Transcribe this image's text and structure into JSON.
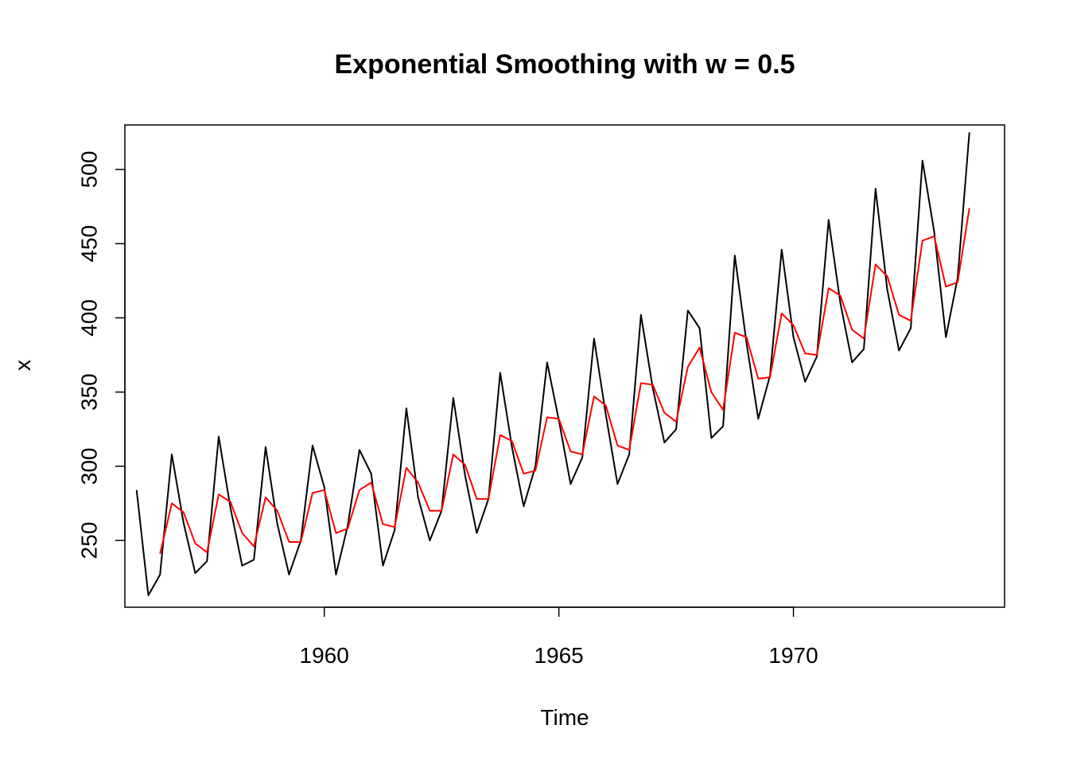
{
  "chart_data": {
    "type": "line",
    "title": "Exponential Smoothing with w = 0.5",
    "xlabel": "Time",
    "ylabel": "x",
    "xlim": [
      1955.75,
      1974.5
    ],
    "ylim": [
      205,
      530
    ],
    "xticks": [
      1960,
      1965,
      1970
    ],
    "yticks": [
      250,
      300,
      350,
      400,
      450,
      500
    ],
    "grid": false,
    "series": [
      {
        "color": "#000000",
        "x": [
          1956.0,
          1956.25,
          1956.5,
          1956.75,
          1957.0,
          1957.25,
          1957.5,
          1957.75,
          1958.0,
          1958.25,
          1958.5,
          1958.75,
          1959.0,
          1959.25,
          1959.5,
          1959.75,
          1960.0,
          1960.25,
          1960.5,
          1960.75,
          1961.0,
          1961.25,
          1961.5,
          1961.75,
          1962.0,
          1962.25,
          1962.5,
          1962.75,
          1963.0,
          1963.25,
          1963.5,
          1963.75,
          1964.0,
          1964.25,
          1964.5,
          1964.75,
          1965.0,
          1965.25,
          1965.5,
          1965.75,
          1966.0,
          1966.25,
          1966.5,
          1966.75,
          1967.0,
          1967.25,
          1967.5,
          1967.75,
          1968.0,
          1968.25,
          1968.5,
          1968.75,
          1969.0,
          1969.25,
          1969.5,
          1969.75,
          1970.0,
          1970.25,
          1970.5,
          1970.75,
          1971.0,
          1971.25,
          1971.5,
          1971.75,
          1972.0,
          1972.25,
          1972.5,
          1972.75,
          1973.0,
          1973.25,
          1973.5,
          1973.75
        ],
        "values": [
          284,
          213,
          227,
          308,
          262,
          228,
          236,
          320,
          272,
          233,
          237,
          313,
          261,
          227,
          250,
          314,
          286,
          227,
          260,
          311,
          295,
          233,
          257,
          339,
          279,
          250,
          270,
          346,
          294,
          255,
          278,
          363,
          313,
          273,
          300,
          370,
          331,
          288,
          306,
          386,
          335,
          288,
          308,
          402,
          353,
          316,
          325,
          405,
          393,
          319,
          327,
          442,
          383,
          332,
          361,
          446,
          387,
          357,
          374,
          466,
          410,
          370,
          379,
          487,
          419,
          378,
          393,
          506,
          458,
          387,
          427,
          525
        ]
      },
      {
        "color": "#ff0000",
        "x": [
          1956.5,
          1956.75,
          1957.0,
          1957.25,
          1957.5,
          1957.75,
          1958.0,
          1958.25,
          1958.5,
          1958.75,
          1959.0,
          1959.25,
          1959.5,
          1959.75,
          1960.0,
          1960.25,
          1960.5,
          1960.75,
          1961.0,
          1961.25,
          1961.5,
          1961.75,
          1962.0,
          1962.25,
          1962.5,
          1962.75,
          1963.0,
          1963.25,
          1963.5,
          1963.75,
          1964.0,
          1964.25,
          1964.5,
          1964.75,
          1965.0,
          1965.25,
          1965.5,
          1965.75,
          1966.0,
          1966.25,
          1966.5,
          1966.75,
          1967.0,
          1967.25,
          1967.5,
          1967.75,
          1968.0,
          1968.25,
          1968.5,
          1968.75,
          1969.0,
          1969.25,
          1969.5,
          1969.75,
          1970.0,
          1970.25,
          1970.5,
          1970.75,
          1971.0,
          1971.25,
          1971.5,
          1971.75,
          1972.0,
          1972.25,
          1972.5,
          1972.75,
          1973.0,
          1973.25,
          1973.5,
          1973.75
        ],
        "values": [
          241,
          275,
          269,
          248,
          242,
          281,
          276,
          255,
          246,
          279,
          270,
          249,
          249,
          282,
          284,
          255,
          258,
          284,
          289,
          261,
          259,
          299,
          289,
          270,
          270,
          308,
          301,
          278,
          278,
          321,
          317,
          295,
          297,
          333,
          332,
          310,
          308,
          347,
          341,
          314,
          311,
          356,
          355,
          336,
          330,
          367,
          380,
          350,
          338,
          390,
          387,
          359,
          360,
          403,
          395,
          376,
          375,
          420,
          415,
          392,
          386,
          436,
          428,
          402,
          398,
          452,
          455,
          421,
          424,
          474
        ]
      }
    ]
  }
}
